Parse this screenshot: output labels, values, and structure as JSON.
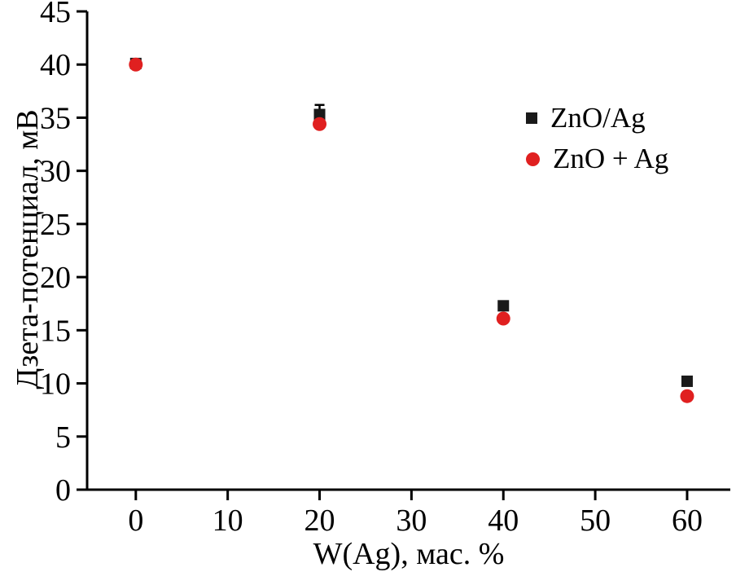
{
  "chart_data": {
    "type": "scatter",
    "title": "",
    "xlabel": "W(Ag), мас. %",
    "ylabel": "Дзета-потенциал, мВ",
    "xlim": [
      -5.3,
      64.7
    ],
    "ylim": [
      0,
      45
    ],
    "x_ticks": [
      0,
      10,
      20,
      30,
      40,
      50,
      60
    ],
    "y_ticks": [
      0,
      5,
      10,
      15,
      20,
      25,
      30,
      35,
      40,
      45
    ],
    "grid": false,
    "legend_position": "upper-right",
    "series": [
      {
        "name": "ZnO/Ag",
        "marker": "square",
        "color": "#1a1a1a",
        "x": [
          0,
          20,
          40,
          60
        ],
        "y": [
          40.1,
          35.3,
          17.3,
          10.2
        ],
        "yerr": [
          0,
          0.9,
          0,
          0
        ]
      },
      {
        "name": "ZnO + Ag",
        "marker": "circle",
        "color": "#e02020",
        "x": [
          0,
          20,
          40,
          60
        ],
        "y": [
          40.0,
          34.4,
          16.1,
          8.8
        ],
        "yerr": [
          0,
          0,
          0,
          0
        ]
      }
    ]
  }
}
